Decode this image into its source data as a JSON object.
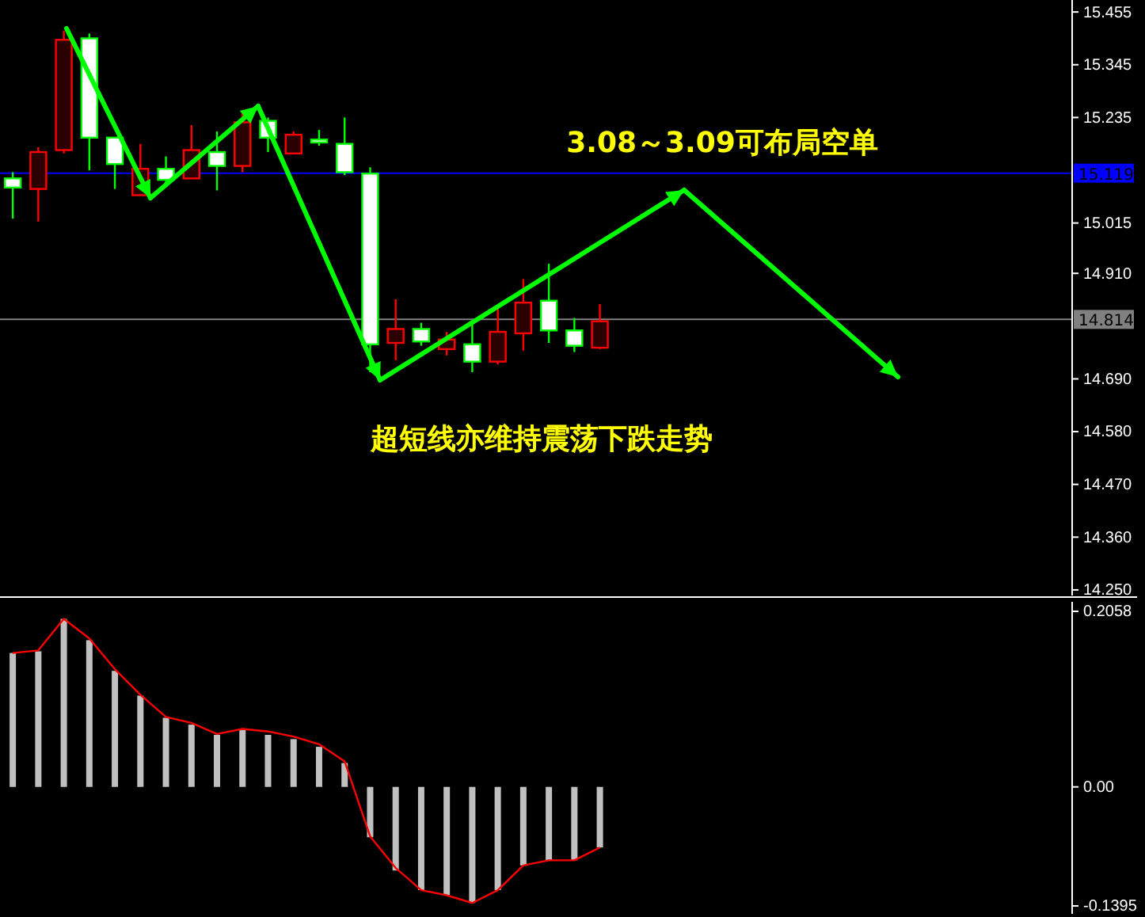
{
  "chart_data": [
    {
      "type": "candlestick",
      "categories": [
        null,
        null,
        null,
        null,
        null,
        null,
        null,
        null,
        null,
        null,
        null,
        null,
        null,
        null,
        null,
        null,
        null,
        null,
        null,
        null,
        null,
        null,
        null,
        null,
        null,
        null,
        null,
        null,
        null,
        null,
        null,
        null,
        null,
        null,
        null,
        null,
        null,
        null,
        null,
        null,
        null,
        null
      ],
      "ohlc": [
        [
          15.108,
          15.121,
          15.024,
          15.089
        ],
        [
          15.086,
          15.173,
          15.018,
          15.163
        ],
        [
          15.167,
          15.416,
          15.16,
          15.397
        ],
        [
          15.4,
          15.41,
          15.125,
          15.193
        ],
        [
          15.193,
          15.193,
          15.086,
          15.138
        ],
        [
          15.073,
          15.18,
          15.073,
          15.128
        ],
        [
          15.128,
          15.154,
          15.089,
          15.105
        ],
        [
          15.108,
          15.219,
          15.108,
          15.167
        ],
        [
          15.163,
          15.206,
          15.083,
          15.134
        ],
        [
          15.134,
          15.245,
          15.121,
          15.225
        ],
        [
          15.228,
          15.235,
          15.163,
          15.193
        ],
        [
          15.16,
          15.206,
          15.16,
          15.199
        ],
        [
          15.189,
          15.209,
          15.176,
          15.183
        ],
        [
          15.18,
          15.235,
          15.115,
          15.121
        ],
        [
          15.118,
          15.131,
          14.704,
          14.762
        ],
        [
          14.765,
          14.856,
          14.729,
          14.794
        ],
        [
          14.794,
          14.807,
          14.759,
          14.768
        ],
        [
          14.752,
          14.788,
          14.739,
          14.772
        ],
        [
          14.762,
          14.81,
          14.704,
          14.726
        ],
        [
          14.726,
          14.84,
          14.72,
          14.788
        ],
        [
          14.785,
          14.898,
          14.749,
          14.849
        ],
        [
          14.853,
          14.93,
          14.765,
          14.791
        ],
        [
          14.791,
          14.817,
          14.746,
          14.759
        ],
        [
          14.755,
          14.846,
          14.752,
          14.81
        ],
        null,
        null,
        null,
        null,
        null,
        null,
        null,
        null,
        null,
        null,
        null,
        null,
        null,
        null,
        null,
        null,
        null,
        null
      ],
      "colors": [
        "#00ff00",
        "#ff0000",
        "#ff0000",
        "#00ff00",
        "#00ff00",
        "#ff0000",
        "#00ff00",
        "#ff0000",
        "#00ff00",
        "#ff0000",
        "#00ff00",
        "#ff0000",
        "#00ff00",
        "#00ff00",
        "#00ff00",
        "#ff0000",
        "#00ff00",
        "#ff0000",
        "#00ff00",
        "#ff0000",
        "#ff0000",
        "#00ff00",
        "#00ff00",
        "#ff0000",
        null,
        null,
        null,
        null,
        null,
        null,
        null,
        null,
        null,
        null,
        null,
        null,
        null,
        null,
        null,
        null,
        null,
        null
      ],
      "ylim": [
        14.235,
        15.48
      ],
      "yticks": [
        {
          "value": 15.455,
          "label": "15.455"
        },
        {
          "value": 15.345,
          "label": "15.345"
        },
        {
          "value": 15.235,
          "label": "15.235"
        },
        {
          "value": 15.015,
          "label": "15.015"
        },
        {
          "value": 14.91,
          "label": "14.910"
        },
        {
          "value": 14.69,
          "label": "14.690"
        },
        {
          "value": 14.58,
          "label": "14.580"
        },
        {
          "value": 14.47,
          "label": "14.470"
        },
        {
          "value": 14.36,
          "label": "14.360"
        },
        {
          "value": 14.25,
          "label": "14.250"
        }
      ],
      "ref_lines": [
        {
          "axis": "y",
          "value": 15.119,
          "label": "15.119",
          "color": "#0000ff"
        },
        {
          "axis": "y",
          "value": 14.814,
          "label": "14.814",
          "color": "#808080"
        }
      ],
      "annotations": [
        "3.08～3.09可布局空单",
        "超短线亦维持震荡下跌走势"
      ],
      "tick_labels": "y"
    },
    {
      "type": "bar",
      "categories": [
        null,
        null,
        null,
        null,
        null,
        null,
        null,
        null,
        null,
        null,
        null,
        null,
        null,
        null,
        null,
        null,
        null,
        null,
        null,
        null,
        null,
        null,
        null,
        null,
        null,
        null,
        null,
        null,
        null,
        null,
        null,
        null,
        null,
        null,
        null,
        null,
        null,
        null,
        null,
        null,
        null,
        null
      ],
      "series": [
        {
          "type": "bar",
          "color": "#c0c0c0",
          "values": [
            0.157,
            0.159,
            0.197,
            0.172,
            0.136,
            0.107,
            0.081,
            0.073,
            0.061,
            0.067,
            0.061,
            0.056,
            0.047,
            0.028,
            -0.059,
            -0.098,
            -0.121,
            -0.127,
            -0.136,
            -0.121,
            -0.092,
            -0.086,
            -0.086,
            -0.071,
            null,
            null,
            null,
            null,
            null,
            null,
            null,
            null,
            null,
            null,
            null,
            null,
            null,
            null,
            null,
            null,
            null,
            null
          ]
        },
        {
          "type": "line",
          "color": "#ff0000",
          "values": [
            0.157,
            0.16,
            0.197,
            0.174,
            0.138,
            0.108,
            0.082,
            0.075,
            0.062,
            0.068,
            0.065,
            0.059,
            0.05,
            0.03,
            -0.058,
            -0.095,
            -0.121,
            -0.127,
            -0.136,
            -0.121,
            -0.092,
            -0.086,
            -0.086,
            -0.071,
            null,
            null,
            null,
            null,
            null,
            null,
            null,
            null,
            null,
            null,
            null,
            null,
            null,
            null,
            null,
            null,
            null,
            null
          ]
        }
      ],
      "ylim": [
        -0.1395,
        0.2058
      ],
      "yticks": [
        {
          "value": 0.2058,
          "label": "0.2058"
        },
        {
          "value": 0,
          "label": "0.00"
        },
        {
          "value": -0.1395,
          "label": "-0.1395"
        }
      ],
      "tick_labels": "y"
    }
  ]
}
